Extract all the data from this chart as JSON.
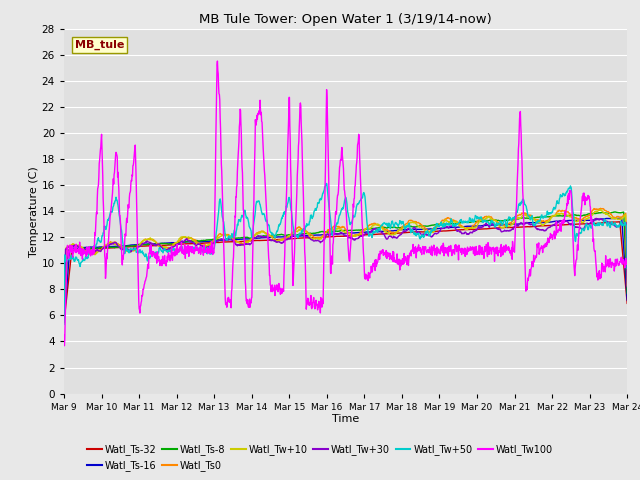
{
  "title": "MB Tule Tower: Open Water 1 (3/19/14-now)",
  "xlabel": "Time",
  "ylabel": "Temperature (C)",
  "ylim": [
    0,
    28
  ],
  "yticks": [
    0,
    2,
    4,
    6,
    8,
    10,
    12,
    14,
    16,
    18,
    20,
    22,
    24,
    26,
    28
  ],
  "xtick_labels": [
    "Mar 9",
    "Mar 10",
    "Mar 11",
    "Mar 12",
    "Mar 13",
    "Mar 14",
    "Mar 15",
    "Mar 16",
    "Mar 17",
    "Mar 18",
    "Mar 19",
    "Mar 20",
    "Mar 21",
    "Mar 22",
    "Mar 23",
    "Mar 24"
  ],
  "background_color": "#e8e8e8",
  "plot_bg_color": "#e0e0e0",
  "series": [
    {
      "label": "Watl_Ts-32",
      "color": "#cc0000"
    },
    {
      "label": "Watl_Ts-16",
      "color": "#0000cc"
    },
    {
      "label": "Watl_Ts-8",
      "color": "#00aa00"
    },
    {
      "label": "Watl_Ts0",
      "color": "#ff8800"
    },
    {
      "label": "Watl_Tw+10",
      "color": "#cccc00"
    },
    {
      "label": "Watl_Tw+30",
      "color": "#8800cc"
    },
    {
      "label": "Watl_Tw+50",
      "color": "#00cccc"
    },
    {
      "label": "Watl_Tw100",
      "color": "#ff00ff"
    }
  ],
  "legend_label": "MB_tule",
  "legend_text_color": "#8b0000",
  "legend_box_facecolor": "#ffffcc",
  "legend_box_edgecolor": "#999900"
}
